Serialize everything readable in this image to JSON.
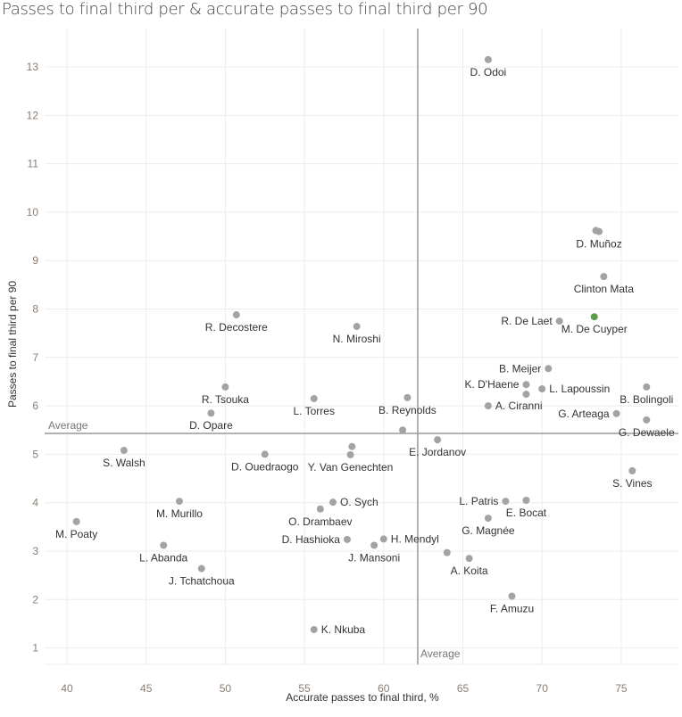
{
  "chart_data": {
    "type": "scatter",
    "title": "Passes to final third per & accurate passes to final third per 90",
    "xlabel": "Accurate passes to final third, %",
    "ylabel": "Passes to final third per 90",
    "xlim": [
      38.5,
      78.5
    ],
    "ylim": [
      0.7,
      13.8
    ],
    "xticks": [
      40,
      45,
      50,
      55,
      60,
      65,
      70,
      75
    ],
    "yticks": [
      1,
      2,
      3,
      4,
      5,
      6,
      7,
      8,
      9,
      10,
      11,
      12,
      13
    ],
    "grid": true,
    "reference_lines": {
      "x_average": {
        "value": 62.15,
        "label": "Average"
      },
      "y_average": {
        "value": 5.43,
        "label": "Average"
      }
    },
    "colors": {
      "default": "#a3a3a3",
      "highlight": "#5a9e4a",
      "refline": "#999999",
      "grid": "#ececec"
    },
    "points": [
      {
        "name": "D. Odoi",
        "x": 66.6,
        "y": 13.15
      },
      {
        "name": "D. Muñoz",
        "x": 73.6,
        "y": 9.6
      },
      {
        "name": "",
        "x": 73.4,
        "y": 9.62
      },
      {
        "name": "Clinton Mata",
        "x": 73.9,
        "y": 8.67
      },
      {
        "name": "R. De Laet",
        "x": 71.1,
        "y": 7.75
      },
      {
        "name": "M. De Cuyper",
        "x": 73.3,
        "y": 7.84,
        "highlight": true
      },
      {
        "name": "B. Meijer",
        "x": 70.4,
        "y": 6.77
      },
      {
        "name": "K. D'Haene",
        "x": 69.0,
        "y": 6.44
      },
      {
        "name": "",
        "x": 69.0,
        "y": 6.24
      },
      {
        "name": "L. Lapoussin",
        "x": 70.0,
        "y": 6.35
      },
      {
        "name": "A. Ciranni",
        "x": 66.6,
        "y": 6.0
      },
      {
        "name": "B. Bolingoli",
        "x": 76.6,
        "y": 6.39
      },
      {
        "name": "G. Arteaga",
        "x": 74.7,
        "y": 5.84
      },
      {
        "name": "G. Dewaele",
        "x": 76.6,
        "y": 5.71
      },
      {
        "name": "S. Vines",
        "x": 75.7,
        "y": 4.66
      },
      {
        "name": "E. Jordanov",
        "x": 63.4,
        "y": 5.3
      },
      {
        "name": "",
        "x": 61.2,
        "y": 5.5
      },
      {
        "name": "B. Reynolds",
        "x": 61.5,
        "y": 6.17
      },
      {
        "name": "L. Torres",
        "x": 55.6,
        "y": 6.15
      },
      {
        "name": "N. Miroshi",
        "x": 58.3,
        "y": 7.64
      },
      {
        "name": "R. Decostere",
        "x": 50.7,
        "y": 7.88
      },
      {
        "name": "R. Tsouka",
        "x": 50.0,
        "y": 6.39
      },
      {
        "name": "D. Opare",
        "x": 49.1,
        "y": 5.85
      },
      {
        "name": "S. Walsh",
        "x": 43.6,
        "y": 5.08
      },
      {
        "name": "D. Ouedraogo",
        "x": 52.5,
        "y": 5.0
      },
      {
        "name": "",
        "x": 58.0,
        "y": 5.16
      },
      {
        "name": "Y. Van Genechten",
        "x": 57.9,
        "y": 4.99
      },
      {
        "name": "M. Murillo",
        "x": 47.1,
        "y": 4.03
      },
      {
        "name": "M. Poaty",
        "x": 40.6,
        "y": 3.61
      },
      {
        "name": "O. Sych",
        "x": 56.8,
        "y": 4.01
      },
      {
        "name": "O. Drambaev",
        "x": 56.0,
        "y": 3.87
      },
      {
        "name": "D. Hashioka",
        "x": 57.7,
        "y": 3.24
      },
      {
        "name": "H. Mendyl",
        "x": 60.0,
        "y": 3.25
      },
      {
        "name": "J. Mansoni",
        "x": 59.4,
        "y": 3.12
      },
      {
        "name": "L. Abanda",
        "x": 46.1,
        "y": 3.12
      },
      {
        "name": "J. Tchatchoua",
        "x": 48.5,
        "y": 2.64
      },
      {
        "name": "",
        "x": 64.0,
        "y": 2.97
      },
      {
        "name": "A. Koita",
        "x": 65.4,
        "y": 2.85
      },
      {
        "name": "L. Patris",
        "x": 67.7,
        "y": 4.03
      },
      {
        "name": "E. Bocat",
        "x": 69.0,
        "y": 4.05
      },
      {
        "name": "G. Magnée",
        "x": 66.6,
        "y": 3.68
      },
      {
        "name": "F. Amuzu",
        "x": 68.1,
        "y": 2.07
      },
      {
        "name": "K. Nkuba",
        "x": 55.6,
        "y": 1.38
      }
    ]
  }
}
